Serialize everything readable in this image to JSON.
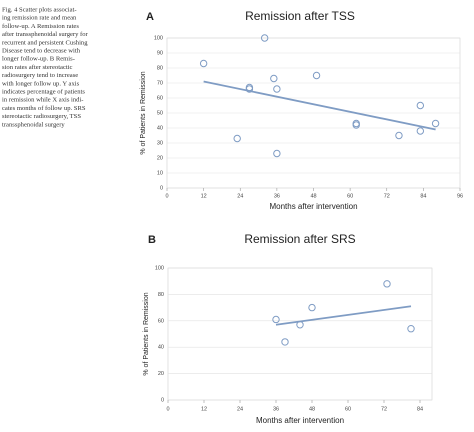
{
  "caption": [
    "Fig. 4  Scatter plots associat-",
    "ing remission rate and mean",
    "follow-up. A Remission rates",
    "after transsphenoidal surgery for",
    "recurrent and persistent Cushing",
    "Disease tend to decrease with",
    "longer follow-up. B Remis-",
    "sion rates after stereotactic",
    "radiosurgery tend to increase",
    "with longer follow up. Y axis",
    "indicates percentage of patients",
    "in remission while X axis indi-",
    "cates months of follow up. SRS",
    "stereotactic radiosurgery, TSS",
    "transsphenoidal surgery"
  ],
  "chart_data": [
    {
      "type": "scatter",
      "panel": "A",
      "title": "Remission after TSS",
      "x_label": "Months after intervention",
      "y_label": "% of Patients in Remission",
      "x": [
        12,
        32,
        27,
        27,
        35,
        36,
        49,
        23,
        36,
        62,
        62,
        83,
        76,
        83,
        88
      ],
      "values": [
        83,
        100,
        67,
        66,
        73,
        66,
        75,
        33,
        23,
        43,
        42,
        55,
        35,
        38,
        43
      ],
      "color": "#7f9cc4",
      "trendline": {
        "x": [
          12,
          88
        ],
        "values": [
          71,
          39
        ]
      },
      "xlim": [
        0,
        96
      ],
      "xticks": [
        0,
        12,
        24,
        36,
        48,
        60,
        72,
        84,
        96
      ],
      "ylim": [
        0,
        100
      ],
      "yticks": [
        0,
        10,
        20,
        30,
        40,
        50,
        60,
        70,
        80,
        90,
        100
      ],
      "grid": true
    },
    {
      "type": "scatter",
      "panel": "B",
      "title": "Remission after SRS",
      "x_label": "Months after intervention",
      "y_label": "% of Patients in Remission",
      "x": [
        36,
        39,
        44,
        48,
        73,
        81
      ],
      "values": [
        61,
        44,
        57,
        70,
        88,
        54
      ],
      "color": "#7f9cc4",
      "trendline": {
        "x": [
          36,
          81
        ],
        "values": [
          57,
          71
        ]
      },
      "xlim": [
        0,
        88
      ],
      "xticks": [
        0,
        12,
        24,
        36,
        48,
        60,
        72,
        84
      ],
      "ylim": [
        0,
        100
      ],
      "yticks": [
        0,
        20,
        40,
        60,
        80,
        100
      ],
      "grid": true
    }
  ]
}
